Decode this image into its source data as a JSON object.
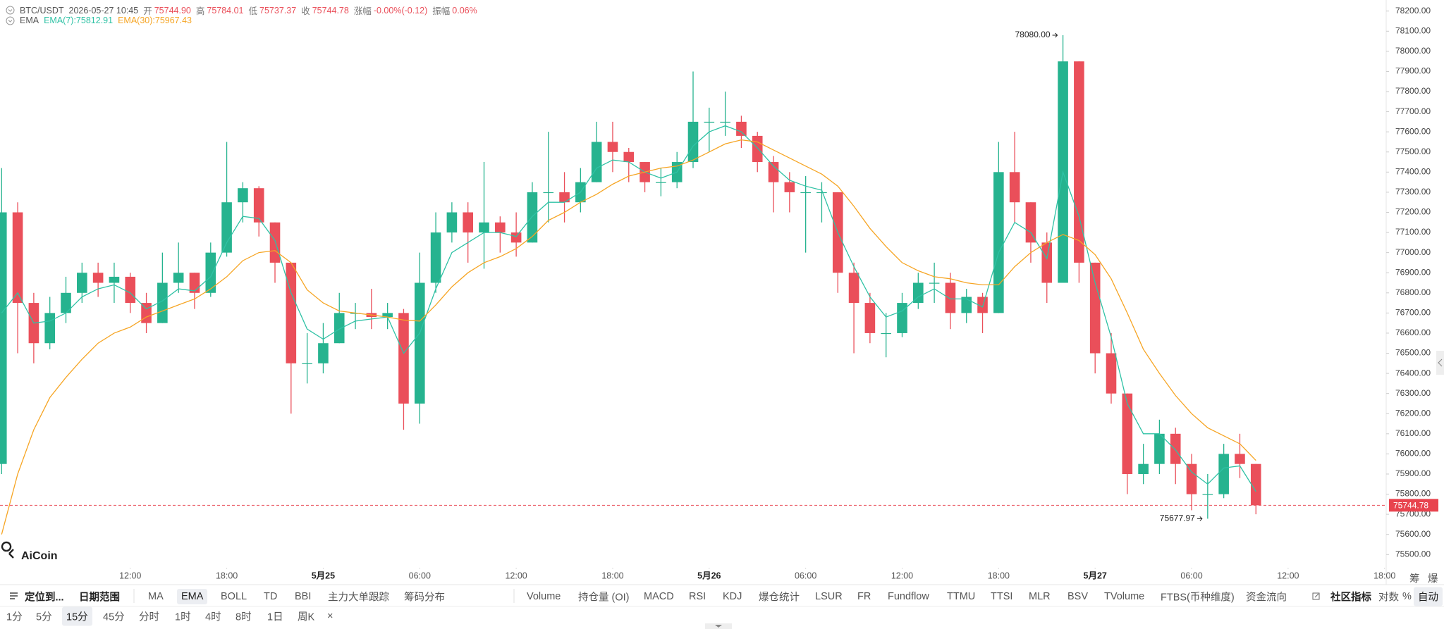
{
  "header": {
    "symbol": "BTC/USDT",
    "time": "2026-05-27 10:45",
    "fields": [
      {
        "label": "开",
        "value": "75744.90"
      },
      {
        "label": "高",
        "value": "75784.01"
      },
      {
        "label": "低",
        "value": "75737.37"
      },
      {
        "label": "收",
        "value": "75744.78"
      },
      {
        "label": "涨幅",
        "value": "-0.00%(-0.12)"
      },
      {
        "label": "振幅",
        "value": "0.06%"
      }
    ],
    "indicator": "EMA",
    "logo": "AiCoin"
  },
  "toolbar": {
    "row1": [
      "定位到...",
      "日期范围",
      "MA",
      "EMA",
      "BOLL",
      "TD",
      "BBI",
      "主力大单跟踪",
      "筹码分布",
      "Volume",
      "持仓量 (OI)",
      "MACD",
      "RSI",
      "KDJ",
      "爆仓统计",
      "LSUR",
      "FR",
      "Fundflow",
      "TTMU",
      "TTSI",
      "MLR",
      "BSV",
      "TVolume",
      "FTBS(币种维度)",
      "资金流向",
      "社区指标",
      "对数",
      "%",
      "自动"
    ],
    "row2": [
      "1分",
      "5分",
      "15分",
      "45分",
      "分时",
      "1时",
      "4时",
      "8时",
      "1日",
      "周K",
      "×"
    ],
    "corner": [
      "筹",
      "爆"
    ]
  },
  "chart_data": {
    "type": "candlestick",
    "categories": [
      null,
      null,
      null,
      null,
      null,
      null,
      null,
      null,
      null,
      null,
      null,
      null,
      null,
      null,
      null,
      null,
      null,
      null,
      null,
      null,
      null,
      null,
      null,
      null,
      null,
      null,
      null,
      null,
      null,
      null,
      null,
      null,
      null,
      null,
      null,
      null,
      null,
      null,
      null,
      null,
      null,
      null,
      null,
      null,
      null,
      null,
      null,
      null,
      null,
      null,
      null,
      null,
      null,
      null,
      null,
      null,
      null,
      null,
      null,
      null,
      null,
      null,
      null,
      null,
      null,
      null,
      null,
      null,
      null,
      null,
      null,
      null,
      null,
      null,
      null,
      null,
      null,
      null,
      null
    ],
    "open": [
      75950,
      77200,
      76750,
      76550,
      76700,
      76800,
      76900,
      76850,
      76880,
      76750,
      76650,
      76850,
      76900,
      76800,
      77000,
      77250,
      77320,
      77150,
      76950,
      76450,
      76450,
      76550,
      76700,
      76700,
      76680,
      76700,
      76250,
      76850,
      77100,
      77200,
      77100,
      77150,
      77100,
      77050,
      77300,
      77300,
      77250,
      77350,
      77550,
      77500,
      77450,
      77350,
      77350,
      77450,
      77650,
      77650,
      77650,
      77580,
      77450,
      77350,
      77300,
      77300,
      77300,
      76900,
      76750,
      76600,
      76600,
      76750,
      76850,
      76850,
      76700,
      76780,
      76700,
      77400,
      77250,
      77050,
      76850,
      77950,
      76950,
      76500,
      76300,
      75900,
      75950,
      76100,
      75950,
      75800,
      75800,
      76000,
      75950
    ],
    "high": [
      77420,
      77250,
      76800,
      76780,
      76880,
      76950,
      76950,
      76950,
      76900,
      76800,
      77000,
      77050,
      76900,
      77050,
      77550,
      77350,
      77330,
      77150,
      76950,
      76600,
      76650,
      76800,
      76750,
      76820,
      76750,
      76720,
      77000,
      77200,
      77250,
      77250,
      77450,
      77180,
      77200,
      77350,
      77600,
      77400,
      77420,
      77650,
      77650,
      77520,
      77450,
      77420,
      77500,
      77900,
      77720,
      77800,
      77680,
      77600,
      77480,
      77400,
      77380,
      77350,
      77300,
      76950,
      76800,
      76700,
      76800,
      76900,
      76950,
      76900,
      76820,
      76800,
      77550,
      77600,
      77250,
      77100,
      78080,
      77950,
      76950,
      76600,
      76300,
      76050,
      76170,
      76130,
      76000,
      75900,
      76050,
      76100,
      75950
    ],
    "low": [
      75900,
      76500,
      76450,
      76520,
      76650,
      76750,
      76780,
      76750,
      76700,
      76600,
      76650,
      76800,
      76720,
      76780,
      76980,
      77150,
      77080,
      76850,
      76200,
      76350,
      76400,
      76550,
      76620,
      76620,
      76620,
      76120,
      76150,
      76800,
      77050,
      76950,
      76920,
      77000,
      76980,
      77050,
      77150,
      77150,
      77200,
      77350,
      77400,
      77350,
      77300,
      77280,
      77320,
      77420,
      77500,
      77580,
      77520,
      77400,
      77200,
      77200,
      77000,
      77150,
      76800,
      76500,
      76550,
      76480,
      76580,
      76720,
      76750,
      76620,
      76650,
      76600,
      76700,
      77150,
      76950,
      76750,
      76850,
      76850,
      76400,
      76250,
      75800,
      75850,
      75900,
      75850,
      75720,
      75677.97,
      75780,
      75880,
      75700
    ],
    "close": [
      77200,
      76750,
      76550,
      76700,
      76800,
      76900,
      76850,
      76880,
      76750,
      76650,
      76850,
      76900,
      76800,
      77000,
      77250,
      77320,
      77150,
      76950,
      76450,
      76450,
      76550,
      76700,
      76700,
      76680,
      76700,
      76250,
      76850,
      77100,
      77200,
      77100,
      77150,
      77100,
      77050,
      77300,
      77300,
      77250,
      77350,
      77550,
      77500,
      77450,
      77350,
      77350,
      77450,
      77650,
      77650,
      77650,
      77580,
      77450,
      77350,
      77300,
      77300,
      77300,
      76900,
      76750,
      76600,
      76600,
      76750,
      76850,
      76850,
      76700,
      76780,
      76700,
      77400,
      77250,
      77050,
      76850,
      77950,
      76950,
      76500,
      76300,
      75900,
      75950,
      76100,
      75950,
      75800,
      75800,
      76000,
      75950,
      75744.78
    ],
    "up_color": "#26b38f",
    "down_color": "#ea4f5a",
    "series": [
      {
        "name": "EMA(7):75812.91",
        "color": "#2fc2a5",
        "values": [
          76700,
          76800,
          76650,
          76660,
          76700,
          76780,
          76820,
          76840,
          76800,
          76720,
          76760,
          76820,
          76810,
          76880,
          77050,
          77180,
          77170,
          77060,
          76800,
          76620,
          76570,
          76620,
          76660,
          76670,
          76680,
          76500,
          76600,
          76820,
          77000,
          77050,
          77100,
          77100,
          77080,
          77180,
          77250,
          77250,
          77300,
          77420,
          77460,
          77450,
          77400,
          77370,
          77400,
          77530,
          77600,
          77630,
          77600,
          77520,
          77430,
          77360,
          77330,
          77310,
          77100,
          76930,
          76780,
          76680,
          76710,
          76780,
          76820,
          76770,
          76770,
          76730,
          77000,
          77150,
          77100,
          76970,
          77400,
          77180,
          76850,
          76580,
          76250,
          76100,
          76100,
          76020,
          75910,
          75850,
          75930,
          75940,
          75812.91
        ]
      },
      {
        "name": "EMA(30):75967.43",
        "color": "#f6a524",
        "values": [
          75600,
          75900,
          76120,
          76280,
          76380,
          76470,
          76550,
          76600,
          76630,
          76680,
          76710,
          76740,
          76770,
          76820,
          76880,
          76960,
          77000,
          77010,
          76950,
          76815,
          76750,
          76710,
          76700,
          76690,
          76680,
          76665,
          76660,
          76740,
          76830,
          76900,
          76950,
          76980,
          77020,
          77080,
          77160,
          77200,
          77250,
          77290,
          77340,
          77380,
          77400,
          77420,
          77430,
          77460,
          77500,
          77540,
          77560,
          77550,
          77510,
          77470,
          77430,
          77390,
          77330,
          77230,
          77120,
          77030,
          76950,
          76910,
          76880,
          76870,
          76850,
          76840,
          76840,
          76930,
          77000,
          77050,
          77090,
          77060,
          76990,
          76870,
          76700,
          76520,
          76400,
          76290,
          76200,
          76130,
          76090,
          76050,
          75967.43
        ]
      }
    ],
    "ylim": [
      75445,
      78255
    ],
    "yticks": [
      {
        "value": 75500,
        "label": "75500.00"
      },
      {
        "value": 75600,
        "label": "75600.00"
      },
      {
        "value": 75700,
        "label": "75700.00"
      },
      {
        "value": 75800,
        "label": "75800.00"
      },
      {
        "value": 75900,
        "label": "75900.00"
      },
      {
        "value": 76000,
        "label": "76000.00"
      },
      {
        "value": 76100,
        "label": "76100.00"
      },
      {
        "value": 76200,
        "label": "76200.00"
      },
      {
        "value": 76300,
        "label": "76300.00"
      },
      {
        "value": 76400,
        "label": "76400.00"
      },
      {
        "value": 76500,
        "label": "76500.00"
      },
      {
        "value": 76600,
        "label": "76600.00"
      },
      {
        "value": 76700,
        "label": "76700.00"
      },
      {
        "value": 76800,
        "label": "76800.00"
      },
      {
        "value": 76900,
        "label": "76900.00"
      },
      {
        "value": 77000,
        "label": "77000.00"
      },
      {
        "value": 77100,
        "label": "77100.00"
      },
      {
        "value": 77200,
        "label": "77200.00"
      },
      {
        "value": 77300,
        "label": "77300.00"
      },
      {
        "value": 77400,
        "label": "77400.00"
      },
      {
        "value": 77500,
        "label": "77500.00"
      },
      {
        "value": 77600,
        "label": "77600.00"
      },
      {
        "value": 77700,
        "label": "77700.00"
      },
      {
        "value": 77800,
        "label": "77800.00"
      },
      {
        "value": 77900,
        "label": "77900.00"
      },
      {
        "value": 78000,
        "label": "78000.00"
      },
      {
        "value": 78100,
        "label": "78100.00"
      },
      {
        "value": 78200,
        "label": "78200.00"
      }
    ],
    "xlim": [
      -0.1,
      86.1
    ],
    "xticks": [
      {
        "value": 8,
        "label": "12:00"
      },
      {
        "value": 14,
        "label": "18:00"
      },
      {
        "value": 20,
        "label": "5月25"
      },
      {
        "value": 26,
        "label": "06:00"
      },
      {
        "value": 32,
        "label": "12:00"
      },
      {
        "value": 38,
        "label": "18:00"
      },
      {
        "value": 44,
        "label": "5月26"
      },
      {
        "value": 50,
        "label": "06:00"
      },
      {
        "value": 56,
        "label": "12:00"
      },
      {
        "value": 62,
        "label": "18:00"
      },
      {
        "value": 68,
        "label": "5月27"
      },
      {
        "value": 74,
        "label": "06:00"
      },
      {
        "value": 80,
        "label": "12:00"
      },
      {
        "value": 86,
        "label": "18:00"
      }
    ],
    "grid": false,
    "annotations": [
      {
        "value": 78080,
        "label": "78080.00"
      },
      {
        "value": 75677.97,
        "label": "75677.97"
      }
    ],
    "last_price": {
      "value": 75744.78,
      "label": "75744.78"
    }
  }
}
